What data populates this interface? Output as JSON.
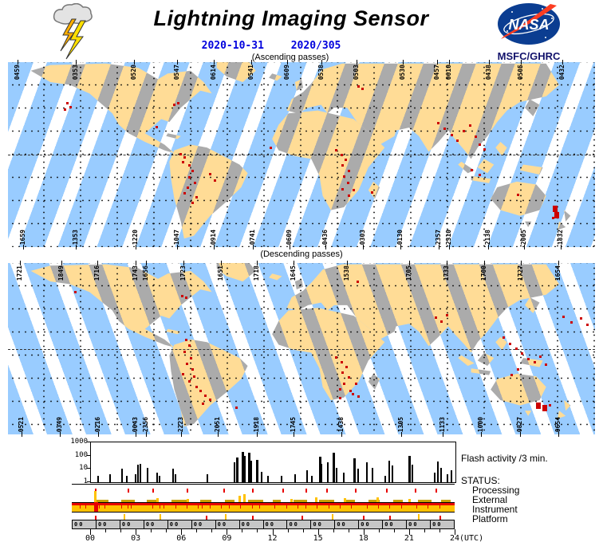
{
  "header": {
    "title": "Lightning Imaging Sensor",
    "date": "2020-10-31",
    "day_of_year": "2020/305",
    "nasa_text": "NASA",
    "org": "MSFC/GHRC"
  },
  "colors": {
    "swath_ocean": "#99CCFF",
    "swath_land": "#FFDC96",
    "gap_land": "#ABABAB",
    "gap_ocean": "#FFFFFF",
    "flash_dot": "#CC0000",
    "date_text": "#0000DD",
    "status_gold": "#FFC100",
    "status_red": "#E80000",
    "status_olive": "#C8A000",
    "platform_gray": "#C6C6C6",
    "nasa_blue": "#0B3D91",
    "nasa_red": "#FC3D21"
  },
  "maps": {
    "ascending": {
      "caption": "(Ascending passes)",
      "top_labels": [
        {
          "t": "0459",
          "x": 1.6
        },
        {
          "t": "0353",
          "x": 11.5
        },
        {
          "t": "0520",
          "x": 21.5
        },
        {
          "t": "0547",
          "x": 28.8
        },
        {
          "t": "0614",
          "x": 35.1
        },
        {
          "t": "0541",
          "x": 41.4
        },
        {
          "t": "0609",
          "x": 47.6
        },
        {
          "t": "0538",
          "x": 53.4
        },
        {
          "t": "0503",
          "x": 59.4
        },
        {
          "t": "0530",
          "x": 67.3
        },
        {
          "t": "0457",
          "x": 73.1
        },
        {
          "t": "0610",
          "x": 75.1
        },
        {
          "t": "0438",
          "x": 81.9
        },
        {
          "t": "0505",
          "x": 87.4
        },
        {
          "t": "0432",
          "x": 94.4
        }
      ],
      "bottom_labels": [
        {
          "t": "1659",
          "x": 2.6
        },
        {
          "t": "1353",
          "x": 11.5
        },
        {
          "t": "1220",
          "x": 21.7
        },
        {
          "t": "1047",
          "x": 28.8
        },
        {
          "t": "0914",
          "x": 35.1
        },
        {
          "t": "0741",
          "x": 41.7
        },
        {
          "t": "0609",
          "x": 48.0
        },
        {
          "t": "0436",
          "x": 54.1
        },
        {
          "t": "0303",
          "x": 60.5
        },
        {
          "t": "0130",
          "x": 66.8
        },
        {
          "t": "2357",
          "x": 73.4
        },
        {
          "t": "2310",
          "x": 75.1
        },
        {
          "t": "2138",
          "x": 81.8
        },
        {
          "t": "2005",
          "x": 87.9
        },
        {
          "t": "1832",
          "x": 94.2
        }
      ],
      "flash_points": [
        {
          "x": 9.9,
          "y": 21.6
        },
        {
          "x": 10.5,
          "y": 23.7
        },
        {
          "x": 9.5,
          "y": 25.0
        },
        {
          "x": 25.1,
          "y": 34.5
        },
        {
          "x": 28.1,
          "y": 22.4
        },
        {
          "x": 28.8,
          "y": 21.6
        },
        {
          "x": 29.2,
          "y": 49.1
        },
        {
          "x": 29.9,
          "y": 50.9
        },
        {
          "x": 29.6,
          "y": 53.4
        },
        {
          "x": 30.7,
          "y": 55.2
        },
        {
          "x": 31.3,
          "y": 58.2
        },
        {
          "x": 30.7,
          "y": 61.6
        },
        {
          "x": 31.7,
          "y": 64.7
        },
        {
          "x": 30.4,
          "y": 67.2
        },
        {
          "x": 29.9,
          "y": 70.3
        },
        {
          "x": 31.9,
          "y": 72.4
        },
        {
          "x": 31.3,
          "y": 75.4
        },
        {
          "x": 34.2,
          "y": 59.9
        },
        {
          "x": 35.1,
          "y": 63.4
        },
        {
          "x": 44.6,
          "y": 45.7
        },
        {
          "x": 55.7,
          "y": 47.0
        },
        {
          "x": 56.7,
          "y": 49.6
        },
        {
          "x": 57.3,
          "y": 52.2
        },
        {
          "x": 56.8,
          "y": 55.2
        },
        {
          "x": 57.9,
          "y": 58.2
        },
        {
          "x": 57.1,
          "y": 61.2
        },
        {
          "x": 57.7,
          "y": 64.7
        },
        {
          "x": 56.8,
          "y": 68.1
        },
        {
          "x": 57.9,
          "y": 71.6
        },
        {
          "x": 58.7,
          "y": 68.5
        },
        {
          "x": 59.5,
          "y": 12.5
        },
        {
          "x": 60.2,
          "y": 13.8
        },
        {
          "x": 61.8,
          "y": 69.8
        },
        {
          "x": 73.1,
          "y": 32.3
        },
        {
          "x": 74.2,
          "y": 35.3
        },
        {
          "x": 75.4,
          "y": 38.8
        },
        {
          "x": 76.4,
          "y": 41.8
        },
        {
          "x": 77.4,
          "y": 36.6
        },
        {
          "x": 78.5,
          "y": 33.6
        },
        {
          "x": 79.5,
          "y": 39.7
        },
        {
          "x": 80.2,
          "y": 44.0
        },
        {
          "x": 81.0,
          "y": 46.6
        },
        {
          "x": 78.8,
          "y": 57.8
        },
        {
          "x": 80.2,
          "y": 60.3
        },
        {
          "x": 86.7,
          "y": 71.1
        },
        {
          "x": 92.8,
          "y": 77.6,
          "s": 2
        },
        {
          "x": 93.1,
          "y": 81.0,
          "s": 2
        },
        {
          "x": 92.7,
          "y": 83.6
        }
      ]
    },
    "descending": {
      "caption": "(Descending passes)",
      "top_labels": [
        {
          "t": "1721",
          "x": 2.0
        },
        {
          "t": "1849",
          "x": 9.1
        },
        {
          "t": "1716",
          "x": 15.2
        },
        {
          "t": "1743",
          "x": 21.7
        },
        {
          "t": "1656",
          "x": 23.5
        },
        {
          "t": "1723",
          "x": 29.9
        },
        {
          "t": "1651",
          "x": 36.3
        },
        {
          "t": "1718",
          "x": 42.4
        },
        {
          "t": "1645",
          "x": 48.6
        },
        {
          "t": "1538",
          "x": 57.7
        },
        {
          "t": "1705",
          "x": 68.3
        },
        {
          "t": "1733",
          "x": 74.7
        },
        {
          "t": "1700",
          "x": 81.1
        },
        {
          "t": "1727",
          "x": 87.4
        },
        {
          "t": "1654",
          "x": 93.8
        }
      ],
      "bottom_labels": [
        {
          "t": "0521",
          "x": 2.3
        },
        {
          "t": "0349",
          "x": 8.8
        },
        {
          "t": "0216",
          "x": 15.4
        },
        {
          "t": "0043",
          "x": 21.7
        },
        {
          "t": "2356",
          "x": 23.5
        },
        {
          "t": "2223",
          "x": 29.5
        },
        {
          "t": "2051",
          "x": 35.7
        },
        {
          "t": "1918",
          "x": 42.4
        },
        {
          "t": "1745",
          "x": 48.6
        },
        {
          "t": "1438",
          "x": 56.8
        },
        {
          "t": "1305",
          "x": 67.0
        },
        {
          "t": "1133",
          "x": 74.0
        },
        {
          "t": "1000",
          "x": 80.6
        },
        {
          "t": "0827",
          "x": 87.2
        },
        {
          "t": "0654",
          "x": 93.8
        }
      ],
      "flash_points": [
        {
          "x": 11.3,
          "y": 16.3
        },
        {
          "x": 29.5,
          "y": 18.6
        },
        {
          "x": 30.2,
          "y": 19.5
        },
        {
          "x": 30.2,
          "y": 44.2
        },
        {
          "x": 30.7,
          "y": 47.4
        },
        {
          "x": 29.9,
          "y": 51.2
        },
        {
          "x": 31.0,
          "y": 54.9
        },
        {
          "x": 30.3,
          "y": 58.1
        },
        {
          "x": 31.3,
          "y": 61.4
        },
        {
          "x": 29.6,
          "y": 64.2
        },
        {
          "x": 31.5,
          "y": 65.6
        },
        {
          "x": 30.7,
          "y": 68.4
        },
        {
          "x": 31.9,
          "y": 71.6
        },
        {
          "x": 32.6,
          "y": 74.0
        },
        {
          "x": 33.4,
          "y": 76.7
        },
        {
          "x": 34.2,
          "y": 79.1
        },
        {
          "x": 33.0,
          "y": 81.4
        },
        {
          "x": 38.7,
          "y": 83.7
        },
        {
          "x": 59.4,
          "y": 10.2
        },
        {
          "x": 55.7,
          "y": 54.4
        },
        {
          "x": 56.7,
          "y": 57.2
        },
        {
          "x": 57.5,
          "y": 60.0
        },
        {
          "x": 56.8,
          "y": 63.3
        },
        {
          "x": 57.9,
          "y": 66.0
        },
        {
          "x": 57.1,
          "y": 69.8
        },
        {
          "x": 56.4,
          "y": 73.0
        },
        {
          "x": 58.2,
          "y": 74.0
        },
        {
          "x": 59.1,
          "y": 69.8
        },
        {
          "x": 58.6,
          "y": 75.8
        },
        {
          "x": 59.5,
          "y": 77.2
        },
        {
          "x": 56.4,
          "y": 78.1
        },
        {
          "x": 72.7,
          "y": 31.2
        },
        {
          "x": 73.6,
          "y": 33.5
        },
        {
          "x": 74.6,
          "y": 29.8
        },
        {
          "x": 84.2,
          "y": 42.8
        },
        {
          "x": 85.3,
          "y": 46.5
        },
        {
          "x": 86.4,
          "y": 49.3
        },
        {
          "x": 87.4,
          "y": 52.1
        },
        {
          "x": 88.5,
          "y": 55.3
        },
        {
          "x": 89.5,
          "y": 57.2
        },
        {
          "x": 90.5,
          "y": 54.0
        },
        {
          "x": 91.4,
          "y": 58.6
        },
        {
          "x": 86.7,
          "y": 61.4
        },
        {
          "x": 85.6,
          "y": 64.7
        },
        {
          "x": 90.0,
          "y": 81.4,
          "s": 2
        },
        {
          "x": 91.0,
          "y": 82.8,
          "s": 2
        },
        {
          "x": 92.1,
          "y": 82.3
        },
        {
          "x": 94.4,
          "y": 30.7
        },
        {
          "x": 95.8,
          "y": 33.9
        },
        {
          "x": 97.4,
          "y": 31.6
        },
        {
          "x": 98.5,
          "y": 35.3
        }
      ]
    }
  },
  "chart_data": {
    "type": "bar",
    "title": "Flash activity /3 min.",
    "yscale": "log",
    "ylim": [
      1,
      1000
    ],
    "y_ticks": [
      "1000",
      "100",
      "10",
      "1"
    ],
    "x_ticks": [
      "00",
      "03",
      "06",
      "09",
      "12",
      "15",
      "18",
      "21",
      "24"
    ],
    "x_unit": "(UTC)",
    "xlim_hours": [
      0,
      24
    ],
    "series": [
      {
        "name": "flash_count_per_3min",
        "points": [
          [
            0.4,
            3
          ],
          [
            1.2,
            4
          ],
          [
            2.0,
            10
          ],
          [
            2.3,
            3
          ],
          [
            2.9,
            4
          ],
          [
            3.05,
            20
          ],
          [
            3.2,
            25
          ],
          [
            3.7,
            12
          ],
          [
            4.3,
            5
          ],
          [
            4.45,
            3
          ],
          [
            5.35,
            11
          ],
          [
            5.5,
            4
          ],
          [
            7.6,
            4
          ],
          [
            9.4,
            30
          ],
          [
            9.55,
            70
          ],
          [
            9.9,
            200
          ],
          [
            10.05,
            90
          ],
          [
            10.35,
            160
          ],
          [
            10.5,
            40
          ],
          [
            10.85,
            50
          ],
          [
            11.2,
            6
          ],
          [
            11.6,
            3
          ],
          [
            12.5,
            3
          ],
          [
            13.4,
            4
          ],
          [
            14.2,
            8
          ],
          [
            14.5,
            3
          ],
          [
            15.0,
            80
          ],
          [
            15.15,
            25
          ],
          [
            15.55,
            30
          ],
          [
            15.9,
            170
          ],
          [
            16.1,
            12
          ],
          [
            16.6,
            5
          ],
          [
            17.3,
            60
          ],
          [
            17.55,
            10
          ],
          [
            18.1,
            30
          ],
          [
            18.5,
            12
          ],
          [
            19.3,
            3
          ],
          [
            19.6,
            40
          ],
          [
            19.8,
            18
          ],
          [
            20.9,
            90
          ],
          [
            21.1,
            20
          ],
          [
            22.6,
            5
          ],
          [
            22.8,
            35
          ],
          [
            23.0,
            12
          ],
          [
            23.4,
            4
          ],
          [
            23.7,
            8
          ]
        ]
      }
    ]
  },
  "status": {
    "heading": "STATUS:",
    "rows": [
      "Processing",
      "External",
      "Instrument",
      "Platform"
    ],
    "processing_ticks": [
      6,
      14.5,
      21,
      30,
      39.5,
      47,
      55,
      61,
      66.5,
      74,
      82,
      89.5,
      95
    ],
    "external_dashes": [
      [
        6.5,
        3
      ],
      [
        13,
        3.5
      ],
      [
        19.5,
        2.5
      ],
      [
        26,
        4
      ],
      [
        33.5,
        3
      ],
      [
        40,
        2.5
      ],
      [
        46,
        4
      ],
      [
        52.5,
        2
      ],
      [
        58,
        3.5
      ],
      [
        64.5,
        4
      ],
      [
        71.5,
        2.5
      ],
      [
        77.5,
        3
      ],
      [
        84,
        2.5
      ],
      [
        90.5,
        3.5
      ],
      [
        96.5,
        2.5
      ]
    ],
    "external_spikes": [
      [
        5.8,
        14
      ],
      [
        22,
        5
      ],
      [
        30,
        4
      ],
      [
        43.5,
        8
      ],
      [
        44.8,
        10
      ],
      [
        57,
        4
      ],
      [
        63.5,
        6
      ],
      [
        71,
        5
      ],
      [
        79.6,
        6
      ],
      [
        88,
        4
      ]
    ],
    "instrument_ticks": [
      2,
      3.5,
      7,
      8.5,
      13,
      14.5,
      15.5,
      21,
      23,
      24,
      27,
      30,
      33,
      34,
      36,
      39,
      41,
      44,
      47,
      49,
      53,
      56,
      59,
      61,
      64,
      67,
      70,
      73,
      77,
      80,
      83,
      86,
      90,
      93,
      96
    ],
    "instrument_anomaly_x": 5.8,
    "platform_ticks": [
      [
        6,
        "r"
      ],
      [
        13.5,
        "y"
      ],
      [
        23,
        "y"
      ],
      [
        35,
        "r"
      ],
      [
        40,
        "y"
      ],
      [
        47,
        "r"
      ],
      [
        60,
        "r"
      ],
      [
        68,
        "y"
      ],
      [
        76,
        "r"
      ],
      [
        83,
        "r"
      ],
      [
        90.5,
        "y"
      ],
      [
        96,
        "r"
      ]
    ],
    "platform_codes": [
      "00",
      "00",
      "00",
      "00",
      "00",
      "00",
      "00",
      "00",
      "00",
      "00",
      "00",
      "00",
      "00",
      "00",
      "00",
      "00"
    ]
  }
}
